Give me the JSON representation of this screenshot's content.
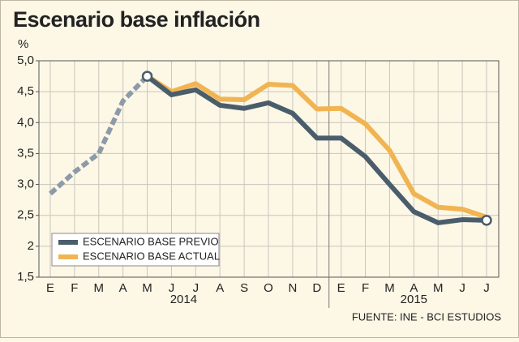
{
  "chart_data": {
    "type": "line",
    "title": "Escenario base inflación",
    "y_unit": "%",
    "source": "FUENTE: INE - BCI ESTUDIOS",
    "categories": [
      "E",
      "F",
      "M",
      "A",
      "M",
      "J",
      "J",
      "A",
      "S",
      "O",
      "N",
      "D",
      "E",
      "F",
      "M",
      "A",
      "M",
      "J",
      "J"
    ],
    "years": [
      "2014",
      "2015"
    ],
    "ylim": [
      1.5,
      5.0
    ],
    "yticks": [
      {
        "value": 1.5,
        "label": "1,5"
      },
      2,
      {
        "value": 2.5,
        "label": "2,5"
      },
      {
        "value": 3.0,
        "label": "3,0"
      },
      {
        "value": 3.5,
        "label": "3,5"
      },
      {
        "value": 4.0,
        "label": "4,0"
      },
      {
        "value": 4.5,
        "label": "4,5"
      },
      {
        "value": 5.0,
        "label": "5,0"
      }
    ],
    "grid": true,
    "history": {
      "color": "#8d9ba8",
      "values": [
        2.85,
        3.2,
        3.5,
        4.35,
        4.75,
        null,
        null,
        null,
        null,
        null,
        null,
        null,
        null,
        null,
        null,
        null,
        null,
        null,
        null
      ]
    },
    "series": [
      {
        "name": "ESCENARIO BASE PREVIO",
        "color": "#4a5d6b",
        "values": [
          null,
          null,
          null,
          null,
          4.75,
          4.45,
          4.53,
          4.28,
          4.23,
          4.32,
          4.15,
          3.75,
          3.75,
          3.45,
          3.0,
          2.56,
          2.38,
          2.43,
          2.42
        ]
      },
      {
        "name": "ESCENARIO BASE ACTUAL",
        "color": "#f0b552",
        "values": [
          null,
          null,
          null,
          null,
          4.75,
          4.5,
          4.63,
          4.38,
          4.37,
          4.62,
          4.6,
          4.22,
          4.23,
          3.98,
          3.55,
          2.85,
          2.63,
          2.6,
          2.47
        ]
      }
    ]
  }
}
